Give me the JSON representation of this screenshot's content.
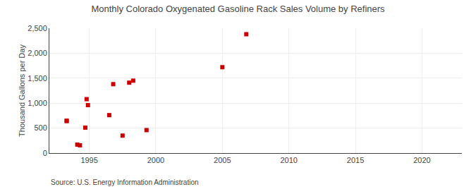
{
  "chart_data": {
    "type": "scatter",
    "title": "Monthly Colorado Oxygenated Gasoline Rack Sales Volume by Refiners",
    "ylabel": "Thousand Gallons per Day",
    "annotations": [
      "Source: U.S. Energy Information Administration"
    ],
    "x": [
      1993.3,
      1993.3,
      1994.1,
      1994.3,
      1994.7,
      1994.8,
      1994.9,
      1996.5,
      1996.8,
      1997.5,
      1998.0,
      1998.3,
      1999.3,
      2005.0,
      2006.8
    ],
    "values": [
      650,
      640,
      170,
      155,
      510,
      1080,
      960,
      760,
      1380,
      350,
      1410,
      1450,
      460,
      1720,
      2380
    ],
    "color": "#cc0000",
    "marker": "square",
    "xlim": [
      1992,
      2023
    ],
    "ylim": [
      0,
      2500
    ],
    "xticks": [
      1995,
      2000,
      2005,
      2010,
      2015,
      2020
    ],
    "yticks": [
      0,
      500,
      {
        "value": 1000,
        "label": "1,000"
      },
      {
        "value": 1500,
        "label": "1,500"
      },
      {
        "value": 2000,
        "label": "2,000"
      },
      {
        "value": 2500,
        "label": "2,500"
      }
    ],
    "grid": true
  }
}
